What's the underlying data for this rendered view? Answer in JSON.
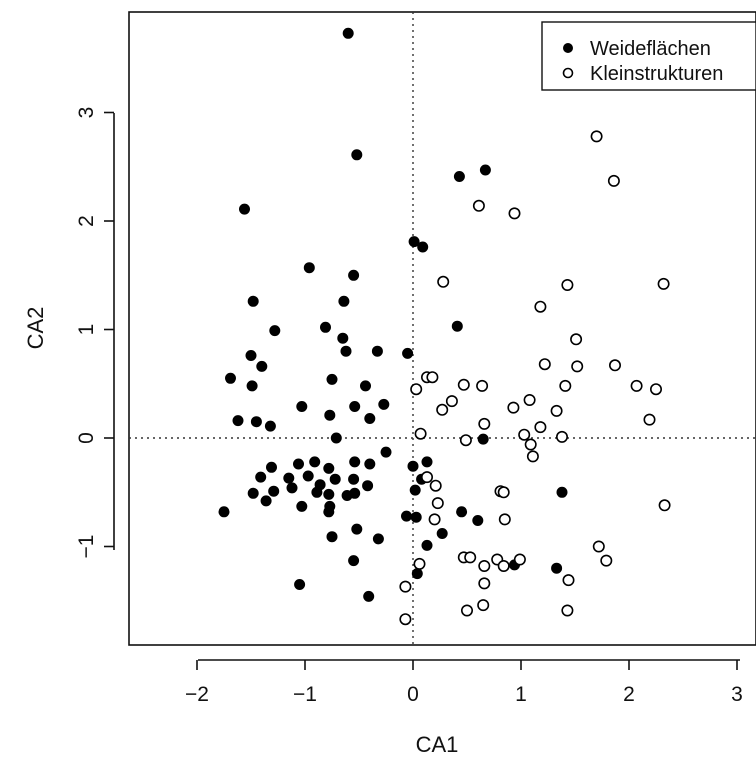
{
  "chart_data": {
    "type": "scatter",
    "title": "",
    "xlabel": "CA1",
    "ylabel": "CA2",
    "xlim": [
      -2.6,
      3.2
    ],
    "ylim": [
      -1.98,
      3.95
    ],
    "x_ticks": [
      -2,
      -1,
      0,
      1,
      2,
      3
    ],
    "y_ticks": [
      -1,
      0,
      1,
      2,
      3
    ],
    "x_tick_labels": [
      "−2",
      "−1",
      "0",
      "1",
      "2",
      "3"
    ],
    "y_tick_labels": [
      "−1",
      "0",
      "1",
      "2",
      "3"
    ],
    "zero_lines": true,
    "grid": false,
    "legend": {
      "position": "top-right",
      "entries": [
        {
          "label": "Weideflächen",
          "marker": "filled-circle"
        },
        {
          "label": "Kleinstrukturen",
          "marker": "open-circle"
        }
      ]
    },
    "series": [
      {
        "name": "Weideflächen",
        "marker": "filled-circle",
        "color": "#000000",
        "points": [
          [
            -0.6,
            3.73
          ],
          [
            -0.52,
            2.61
          ],
          [
            -1.56,
            2.11
          ],
          [
            0.43,
            2.41
          ],
          [
            0.67,
            2.47
          ],
          [
            0.01,
            1.81
          ],
          [
            0.09,
            1.76
          ],
          [
            -0.96,
            1.57
          ],
          [
            -0.55,
            1.5
          ],
          [
            -1.48,
            1.26
          ],
          [
            -0.64,
            1.26
          ],
          [
            -1.28,
            0.99
          ],
          [
            -0.81,
            1.02
          ],
          [
            0.41,
            1.03
          ],
          [
            -0.65,
            0.92
          ],
          [
            -0.62,
            0.8
          ],
          [
            -0.33,
            0.8
          ],
          [
            -0.05,
            0.78
          ],
          [
            -1.5,
            0.76
          ],
          [
            -1.4,
            0.66
          ],
          [
            -1.69,
            0.55
          ],
          [
            -1.49,
            0.48
          ],
          [
            -0.75,
            0.54
          ],
          [
            -0.44,
            0.48
          ],
          [
            -1.03,
            0.29
          ],
          [
            -0.77,
            0.21
          ],
          [
            -0.54,
            0.29
          ],
          [
            -0.27,
            0.31
          ],
          [
            -0.4,
            0.18
          ],
          [
            -1.62,
            0.16
          ],
          [
            -1.45,
            0.15
          ],
          [
            -1.32,
            0.11
          ],
          [
            -0.71,
            0.0
          ],
          [
            -0.25,
            -0.13
          ],
          [
            0.65,
            -0.01
          ],
          [
            -1.31,
            -0.27
          ],
          [
            -1.06,
            -0.24
          ],
          [
            -0.91,
            -0.22
          ],
          [
            -0.78,
            -0.28
          ],
          [
            -0.54,
            -0.22
          ],
          [
            -0.4,
            -0.24
          ],
          [
            0.0,
            -0.26
          ],
          [
            0.13,
            -0.22
          ],
          [
            -1.41,
            -0.36
          ],
          [
            -1.15,
            -0.37
          ],
          [
            -0.97,
            -0.35
          ],
          [
            -0.86,
            -0.43
          ],
          [
            -0.72,
            -0.38
          ],
          [
            -0.55,
            -0.38
          ],
          [
            0.08,
            -0.38
          ],
          [
            -1.48,
            -0.51
          ],
          [
            -1.29,
            -0.49
          ],
          [
            -1.12,
            -0.46
          ],
          [
            -0.89,
            -0.5
          ],
          [
            -0.78,
            -0.52
          ],
          [
            -0.61,
            -0.53
          ],
          [
            -0.54,
            -0.51
          ],
          [
            -0.42,
            -0.44
          ],
          [
            0.02,
            -0.48
          ],
          [
            1.38,
            -0.5
          ],
          [
            -1.36,
            -0.58
          ],
          [
            -1.03,
            -0.63
          ],
          [
            -0.77,
            -0.63
          ],
          [
            -0.78,
            -0.68
          ],
          [
            -1.75,
            -0.68
          ],
          [
            0.45,
            -0.68
          ],
          [
            0.6,
            -0.76
          ],
          [
            -0.06,
            -0.72
          ],
          [
            0.03,
            -0.73
          ],
          [
            -0.52,
            -0.84
          ],
          [
            0.27,
            -0.88
          ],
          [
            -0.75,
            -0.91
          ],
          [
            -0.32,
            -0.93
          ],
          [
            0.13,
            -0.99
          ],
          [
            -0.55,
            -1.13
          ],
          [
            0.94,
            -1.17
          ],
          [
            1.33,
            -1.2
          ],
          [
            0.04,
            -1.25
          ],
          [
            -1.05,
            -1.35
          ],
          [
            -0.41,
            -1.46
          ]
        ]
      },
      {
        "name": "Kleinstrukturen",
        "marker": "open-circle",
        "color": "#000000",
        "points": [
          [
            1.7,
            2.78
          ],
          [
            1.86,
            2.37
          ],
          [
            0.61,
            2.14
          ],
          [
            0.94,
            2.07
          ],
          [
            0.28,
            1.44
          ],
          [
            1.43,
            1.41
          ],
          [
            2.32,
            1.42
          ],
          [
            1.18,
            1.21
          ],
          [
            1.51,
            0.91
          ],
          [
            1.22,
            0.68
          ],
          [
            1.52,
            0.66
          ],
          [
            1.87,
            0.67
          ],
          [
            0.13,
            0.56
          ],
          [
            0.18,
            0.56
          ],
          [
            0.47,
            0.49
          ],
          [
            0.64,
            0.48
          ],
          [
            0.03,
            0.45
          ],
          [
            1.41,
            0.48
          ],
          [
            2.07,
            0.48
          ],
          [
            2.25,
            0.45
          ],
          [
            0.36,
            0.34
          ],
          [
            0.27,
            0.26
          ],
          [
            0.93,
            0.28
          ],
          [
            1.08,
            0.35
          ],
          [
            1.33,
            0.25
          ],
          [
            2.19,
            0.17
          ],
          [
            0.66,
            0.13
          ],
          [
            1.18,
            0.1
          ],
          [
            0.07,
            0.04
          ],
          [
            1.03,
            0.03
          ],
          [
            1.38,
            0.01
          ],
          [
            0.49,
            -0.02
          ],
          [
            1.09,
            -0.06
          ],
          [
            1.11,
            -0.17
          ],
          [
            0.13,
            -0.36
          ],
          [
            0.21,
            -0.44
          ],
          [
            0.81,
            -0.49
          ],
          [
            0.84,
            -0.5
          ],
          [
            0.23,
            -0.6
          ],
          [
            2.33,
            -0.62
          ],
          [
            0.2,
            -0.75
          ],
          [
            0.85,
            -0.75
          ],
          [
            1.72,
            -1.0
          ],
          [
            0.47,
            -1.1
          ],
          [
            0.53,
            -1.1
          ],
          [
            0.78,
            -1.12
          ],
          [
            0.99,
            -1.12
          ],
          [
            1.79,
            -1.13
          ],
          [
            0.06,
            -1.16
          ],
          [
            0.66,
            -1.18
          ],
          [
            0.84,
            -1.18
          ],
          [
            1.44,
            -1.31
          ],
          [
            0.66,
            -1.34
          ],
          [
            -0.07,
            -1.37
          ],
          [
            0.5,
            -1.59
          ],
          [
            0.65,
            -1.54
          ],
          [
            1.43,
            -1.59
          ],
          [
            -0.07,
            -1.67
          ]
        ]
      }
    ]
  }
}
